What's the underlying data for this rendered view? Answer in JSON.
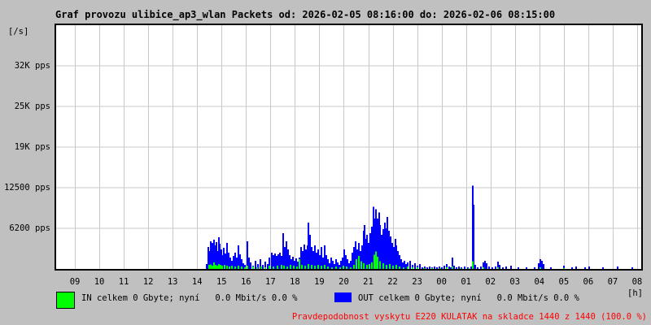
{
  "title": "Graf provozu ulibice_ap3_wlan Packets od: 2026-02-05 08:16:00 do: 2026-02-06 08:15:00",
  "y_axis_unit": "[/s]",
  "x_axis_unit": "[h]",
  "legend": {
    "in_label": "IN celkem 0 Gbyte; nyní   0.0 Mbit/s 0.0 %",
    "out_label": "OUT celkem 0 Gbyte; nyní   0.0 Mbit/s 0.0 %",
    "in_color": "#00ff00",
    "out_color": "#0000ff"
  },
  "footer_note": "Pravdepodobnost vyskytu E220 KULATAK na skladce 1440 z 1440 (100.0 %)",
  "footer_color": "#ff0000",
  "colors": {
    "background": "#c0c0c0",
    "plot_background": "#ffffff",
    "grid": "#c8c8c8",
    "axis": "#000000"
  },
  "chart_data": {
    "type": "bar",
    "title": "Graf provozu ulibice_ap3_wlan Packets",
    "time_start": "2026-02-05 08:16:00",
    "time_end": "2026-02-06 08:15:00",
    "xlabel": "[h]",
    "ylabel": "[/s]",
    "grid": true,
    "legend_position": "bottom",
    "ylim": [
      0,
      37500
    ],
    "y_tick_values": [
      6250,
      12500,
      18750,
      25000,
      31250
    ],
    "y_tick_labels": [
      "6200 pps",
      "12500 pps",
      "19K pps",
      "25K pps",
      "32K pps"
    ],
    "x_first_tick_offset_hours": 0.7333,
    "x_tick_labels": [
      "09",
      "10",
      "11",
      "12",
      "13",
      "14",
      "15",
      "16",
      "17",
      "18",
      "19",
      "20",
      "21",
      "22",
      "23",
      "00",
      "01",
      "02",
      "03",
      "04",
      "05",
      "06",
      "07",
      "08"
    ],
    "x_unit": "hours since start (08:16)",
    "series": [
      {
        "name": "OUT",
        "color": "#0000ff",
        "unit": "pps",
        "points": [
          [
            6.12,
            750
          ],
          [
            6.19,
            3350
          ],
          [
            6.26,
            2740
          ],
          [
            6.29,
            4230
          ],
          [
            6.36,
            3980
          ],
          [
            6.39,
            3110
          ],
          [
            6.42,
            4480
          ],
          [
            6.49,
            3610
          ],
          [
            6.52,
            4110
          ],
          [
            6.56,
            2740
          ],
          [
            6.62,
            4860
          ],
          [
            6.66,
            3860
          ],
          [
            6.72,
            2990
          ],
          [
            6.76,
            2120
          ],
          [
            6.82,
            3240
          ],
          [
            6.89,
            2370
          ],
          [
            6.96,
            3980
          ],
          [
            7.02,
            2490
          ],
          [
            7.09,
            1740
          ],
          [
            7.16,
            1250
          ],
          [
            7.22,
            1990
          ],
          [
            7.29,
            2490
          ],
          [
            7.36,
            1740
          ],
          [
            7.42,
            3610
          ],
          [
            7.49,
            2240
          ],
          [
            7.56,
            1490
          ],
          [
            7.62,
            870
          ],
          [
            7.69,
            620
          ],
          [
            7.79,
            4230
          ],
          [
            7.86,
            1740
          ],
          [
            7.92,
            1000
          ],
          [
            8.02,
            500
          ],
          [
            8.12,
            1250
          ],
          [
            8.22,
            750
          ],
          [
            8.32,
            1490
          ],
          [
            8.42,
            620
          ],
          [
            8.52,
            1120
          ],
          [
            8.62,
            750
          ],
          [
            8.69,
            1740
          ],
          [
            8.79,
            2490
          ],
          [
            8.86,
            2120
          ],
          [
            8.92,
            2370
          ],
          [
            8.99,
            1990
          ],
          [
            9.05,
            2240
          ],
          [
            9.12,
            2490
          ],
          [
            9.19,
            1990
          ],
          [
            9.25,
            5480
          ],
          [
            9.32,
            3360
          ],
          [
            9.39,
            4230
          ],
          [
            9.45,
            2990
          ],
          [
            9.52,
            2120
          ],
          [
            9.59,
            1490
          ],
          [
            9.65,
            1870
          ],
          [
            9.72,
            1250
          ],
          [
            9.79,
            1620
          ],
          [
            9.85,
            1120
          ],
          [
            9.92,
            1740
          ],
          [
            9.99,
            3360
          ],
          [
            10.05,
            2740
          ],
          [
            10.12,
            3730
          ],
          [
            10.19,
            2990
          ],
          [
            10.25,
            3610
          ],
          [
            10.29,
            7100
          ],
          [
            10.35,
            5230
          ],
          [
            10.42,
            3360
          ],
          [
            10.49,
            2740
          ],
          [
            10.55,
            3610
          ],
          [
            10.62,
            2490
          ],
          [
            10.69,
            2990
          ],
          [
            10.75,
            2120
          ],
          [
            10.82,
            3360
          ],
          [
            10.88,
            1740
          ],
          [
            10.95,
            3610
          ],
          [
            11.02,
            2120
          ],
          [
            11.08,
            1490
          ],
          [
            11.15,
            870
          ],
          [
            11.22,
            1740
          ],
          [
            11.28,
            1250
          ],
          [
            11.35,
            750
          ],
          [
            11.42,
            1490
          ],
          [
            11.48,
            1000
          ],
          [
            11.55,
            620
          ],
          [
            11.62,
            1250
          ],
          [
            11.68,
            1740
          ],
          [
            11.75,
            2990
          ],
          [
            11.82,
            2120
          ],
          [
            11.88,
            1490
          ],
          [
            11.95,
            870
          ],
          [
            12.02,
            1250
          ],
          [
            12.08,
            2490
          ],
          [
            12.15,
            3360
          ],
          [
            12.22,
            4230
          ],
          [
            12.28,
            2990
          ],
          [
            12.35,
            3980
          ],
          [
            12.42,
            2740
          ],
          [
            12.48,
            3610
          ],
          [
            12.55,
            5850
          ],
          [
            12.58,
            6720
          ],
          [
            12.65,
            4610
          ],
          [
            12.68,
            5230
          ],
          [
            12.75,
            3980
          ],
          [
            12.82,
            5480
          ],
          [
            12.88,
            6470
          ],
          [
            12.95,
            9590
          ],
          [
            12.98,
            7720
          ],
          [
            13.05,
            9210
          ],
          [
            13.12,
            7720
          ],
          [
            13.18,
            8710
          ],
          [
            13.22,
            6720
          ],
          [
            13.28,
            5230
          ],
          [
            13.35,
            6100
          ],
          [
            13.42,
            7100
          ],
          [
            13.45,
            6220
          ],
          [
            13.52,
            7970
          ],
          [
            13.58,
            5850
          ],
          [
            13.65,
            4980
          ],
          [
            13.72,
            3980
          ],
          [
            13.78,
            3360
          ],
          [
            13.85,
            4610
          ],
          [
            13.88,
            3610
          ],
          [
            13.95,
            2740
          ],
          [
            14.01,
            2120
          ],
          [
            14.08,
            1490
          ],
          [
            14.15,
            1000
          ],
          [
            14.21,
            1250
          ],
          [
            14.28,
            750
          ],
          [
            14.35,
            1000
          ],
          [
            14.45,
            1250
          ],
          [
            14.55,
            620
          ],
          [
            14.65,
            870
          ],
          [
            14.75,
            500
          ],
          [
            14.85,
            750
          ],
          [
            14.95,
            250
          ],
          [
            15.05,
            370
          ],
          [
            15.15,
            250
          ],
          [
            15.25,
            370
          ],
          [
            15.35,
            250
          ],
          [
            15.45,
            370
          ],
          [
            15.54,
            250
          ],
          [
            15.64,
            370
          ],
          [
            15.74,
            250
          ],
          [
            15.84,
            500
          ],
          [
            15.94,
            750
          ],
          [
            16.04,
            370
          ],
          [
            16.11,
            250
          ],
          [
            16.18,
            1740
          ],
          [
            16.24,
            500
          ],
          [
            16.34,
            250
          ],
          [
            16.44,
            370
          ],
          [
            16.54,
            250
          ],
          [
            16.68,
            370
          ],
          [
            16.81,
            250
          ],
          [
            16.94,
            370
          ],
          [
            17.01,
            12800
          ],
          [
            17.04,
            9900
          ],
          [
            17.11,
            620
          ],
          [
            17.21,
            250
          ],
          [
            17.34,
            370
          ],
          [
            17.44,
            1000
          ],
          [
            17.51,
            1250
          ],
          [
            17.58,
            870
          ],
          [
            17.68,
            370
          ],
          [
            17.81,
            250
          ],
          [
            17.94,
            370
          ],
          [
            18.04,
            1120
          ],
          [
            18.11,
            620
          ],
          [
            18.24,
            250
          ],
          [
            18.38,
            370
          ],
          [
            18.58,
            500
          ],
          [
            18.87,
            250
          ],
          [
            19.21,
            250
          ],
          [
            19.54,
            250
          ],
          [
            19.71,
            870
          ],
          [
            19.77,
            1490
          ],
          [
            19.84,
            1250
          ],
          [
            19.91,
            750
          ],
          [
            20.21,
            250
          ],
          [
            20.74,
            500
          ],
          [
            21.07,
            250
          ],
          [
            21.24,
            370
          ],
          [
            21.61,
            250
          ],
          [
            21.77,
            370
          ],
          [
            22.34,
            250
          ],
          [
            22.94,
            370
          ],
          [
            23.54,
            250
          ],
          [
            23.94,
            370
          ]
        ]
      },
      {
        "name": "IN",
        "color": "#00ff00",
        "unit": "pps",
        "points": [
          [
            6.22,
            600
          ],
          [
            6.29,
            700
          ],
          [
            6.36,
            500
          ],
          [
            6.42,
            1000
          ],
          [
            6.49,
            620
          ],
          [
            6.56,
            500
          ],
          [
            6.62,
            750
          ],
          [
            6.69,
            620
          ],
          [
            6.76,
            500
          ],
          [
            6.86,
            620
          ],
          [
            6.96,
            500
          ],
          [
            7.06,
            370
          ],
          [
            7.16,
            500
          ],
          [
            7.29,
            370
          ],
          [
            7.42,
            500
          ],
          [
            7.56,
            370
          ],
          [
            7.69,
            250
          ],
          [
            7.79,
            500
          ],
          [
            8.02,
            370
          ],
          [
            8.19,
            250
          ],
          [
            8.35,
            370
          ],
          [
            8.52,
            250
          ],
          [
            8.69,
            500
          ],
          [
            8.85,
            370
          ],
          [
            9.02,
            500
          ],
          [
            9.19,
            620
          ],
          [
            9.29,
            500
          ],
          [
            9.42,
            370
          ],
          [
            9.55,
            620
          ],
          [
            9.69,
            500
          ],
          [
            9.82,
            370
          ],
          [
            9.92,
            1500
          ],
          [
            10.02,
            620
          ],
          [
            10.15,
            500
          ],
          [
            10.29,
            750
          ],
          [
            10.42,
            620
          ],
          [
            10.55,
            500
          ],
          [
            10.69,
            620
          ],
          [
            10.82,
            500
          ],
          [
            10.95,
            620
          ],
          [
            11.08,
            370
          ],
          [
            11.25,
            250
          ],
          [
            11.42,
            370
          ],
          [
            11.58,
            250
          ],
          [
            11.72,
            500
          ],
          [
            11.85,
            370
          ],
          [
            12.02,
            250
          ],
          [
            12.15,
            620
          ],
          [
            12.25,
            1500
          ],
          [
            12.35,
            1990
          ],
          [
            12.45,
            1200
          ],
          [
            12.55,
            870
          ],
          [
            12.68,
            620
          ],
          [
            12.78,
            750
          ],
          [
            12.88,
            1000
          ],
          [
            12.98,
            2200
          ],
          [
            13.05,
            2700
          ],
          [
            13.12,
            1900
          ],
          [
            13.22,
            1200
          ],
          [
            13.35,
            870
          ],
          [
            13.48,
            620
          ],
          [
            13.62,
            750
          ],
          [
            13.75,
            500
          ],
          [
            13.88,
            620
          ],
          [
            14.01,
            370
          ],
          [
            14.18,
            250
          ],
          [
            14.35,
            370
          ],
          [
            14.55,
            250
          ],
          [
            14.75,
            250
          ],
          [
            15.01,
            120
          ],
          [
            15.35,
            120
          ],
          [
            15.68,
            120
          ],
          [
            15.94,
            250
          ],
          [
            16.18,
            370
          ],
          [
            16.51,
            120
          ],
          [
            16.84,
            120
          ],
          [
            17.01,
            1200
          ],
          [
            17.44,
            250
          ],
          [
            18.04,
            250
          ],
          [
            19.77,
            250
          ],
          [
            20.74,
            120
          ]
        ]
      }
    ]
  }
}
